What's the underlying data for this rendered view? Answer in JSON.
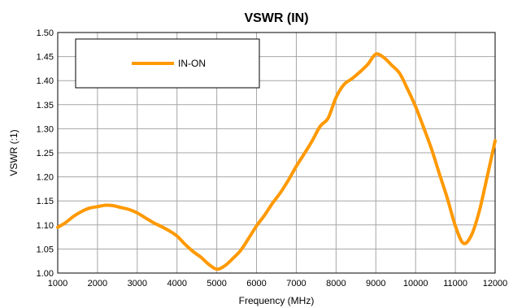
{
  "chart_data": {
    "type": "line",
    "title": "VSWR (IN)",
    "xlabel": "Frequency (MHz)",
    "ylabel": "VSWR (:1)",
    "xlim": [
      1000,
      12000
    ],
    "ylim": [
      1.0,
      1.5
    ],
    "xticks": [
      1000,
      2000,
      3000,
      4000,
      5000,
      6000,
      7000,
      8000,
      9000,
      10000,
      11000,
      12000
    ],
    "yticks": [
      "1.00",
      "1.05",
      "1.10",
      "1.15",
      "1.20",
      "1.25",
      "1.30",
      "1.35",
      "1.40",
      "1.45",
      "1.50"
    ],
    "grid": true,
    "legend_position": "top-left",
    "colors": {
      "series": "#ff9900",
      "grid": "#a6a6a6",
      "axis": "#000000"
    },
    "series": [
      {
        "name": "IN-ON",
        "x": [
          1000,
          1200,
          1400,
          1600,
          1800,
          2000,
          2200,
          2400,
          2600,
          2800,
          3000,
          3200,
          3400,
          3600,
          3800,
          4000,
          4200,
          4400,
          4600,
          4800,
          5000,
          5200,
          5400,
          5600,
          5800,
          6000,
          6200,
          6400,
          6600,
          6800,
          7000,
          7200,
          7400,
          7600,
          7800,
          8000,
          8200,
          8400,
          8600,
          8800,
          9000,
          9200,
          9400,
          9600,
          9800,
          10000,
          10200,
          10400,
          10600,
          10800,
          11000,
          11200,
          11400,
          11600,
          11800,
          12000
        ],
        "y": [
          1.095,
          1.105,
          1.118,
          1.128,
          1.135,
          1.138,
          1.141,
          1.14,
          1.136,
          1.132,
          1.125,
          1.115,
          1.105,
          1.097,
          1.088,
          1.077,
          1.06,
          1.045,
          1.033,
          1.018,
          1.008,
          1.015,
          1.03,
          1.047,
          1.072,
          1.098,
          1.12,
          1.145,
          1.167,
          1.193,
          1.222,
          1.248,
          1.275,
          1.305,
          1.322,
          1.365,
          1.392,
          1.404,
          1.418,
          1.434,
          1.455,
          1.448,
          1.432,
          1.415,
          1.382,
          1.346,
          1.303,
          1.258,
          1.206,
          1.155,
          1.098,
          1.062,
          1.078,
          1.128,
          1.2,
          1.275
        ]
      }
    ]
  }
}
